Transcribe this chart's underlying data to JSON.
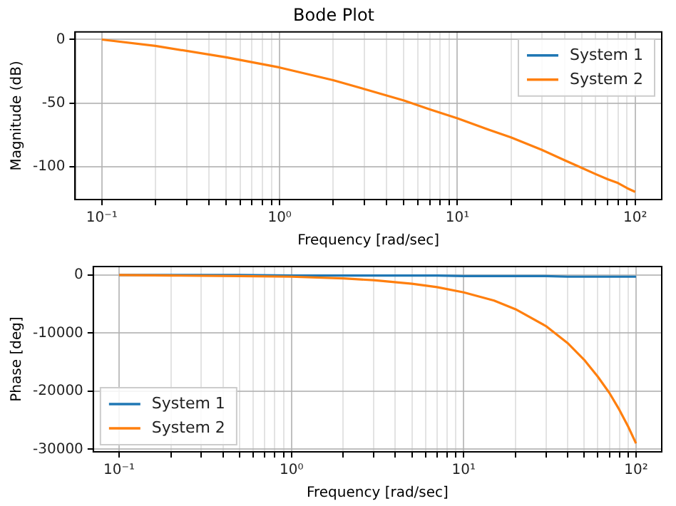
{
  "chart_data": [
    {
      "type": "line",
      "title": "Bode Plot",
      "xlabel": "Frequency [rad/sec]",
      "ylabel": "Magnitude (dB)",
      "x": [
        0.1,
        0.2,
        0.5,
        1,
        2,
        3,
        5,
        7,
        10,
        15,
        20,
        30,
        40,
        50,
        60,
        70,
        80,
        90,
        100
      ],
      "series": [
        {
          "name": "System 1",
          "color": "#1f77b4",
          "values": [
            null,
            null,
            null,
            null,
            null,
            null,
            null,
            null,
            null,
            null,
            null,
            null,
            null,
            null,
            null,
            null,
            null,
            null,
            null
          ]
        },
        {
          "name": "System 2",
          "color": "#ff7f0e",
          "values": [
            0,
            -5,
            -14,
            -22,
            -32,
            -39,
            -48,
            -55,
            -62,
            -71,
            -77,
            -87,
            -95,
            -101,
            -106,
            -110,
            -113,
            -117,
            -120
          ]
        }
      ],
      "log": "x",
      "xlim": [
        0.0708,
        141
      ],
      "ylim": [
        -126,
        6
      ],
      "xticks": [
        {
          "value": 0.1,
          "label": "10⁻¹"
        },
        {
          "value": 0.2,
          "label": null
        },
        {
          "value": 0.3,
          "label": null
        },
        {
          "value": 0.4,
          "label": null
        },
        {
          "value": 0.5,
          "label": null
        },
        {
          "value": 0.6,
          "label": null
        },
        {
          "value": 0.7,
          "label": null
        },
        {
          "value": 0.8,
          "label": null
        },
        {
          "value": 0.9,
          "label": null
        },
        {
          "value": 1,
          "label": "10⁰"
        },
        {
          "value": 2,
          "label": null
        },
        {
          "value": 3,
          "label": null
        },
        {
          "value": 4,
          "label": null
        },
        {
          "value": 5,
          "label": null
        },
        {
          "value": 6,
          "label": null
        },
        {
          "value": 7,
          "label": null
        },
        {
          "value": 8,
          "label": null
        },
        {
          "value": 9,
          "label": null
        },
        {
          "value": 10,
          "label": "10¹"
        },
        {
          "value": 20,
          "label": null
        },
        {
          "value": 30,
          "label": null
        },
        {
          "value": 40,
          "label": null
        },
        {
          "value": 50,
          "label": null
        },
        {
          "value": 60,
          "label": null
        },
        {
          "value": 70,
          "label": null
        },
        {
          "value": 80,
          "label": null
        },
        {
          "value": 90,
          "label": null
        },
        {
          "value": 100,
          "label": "10²"
        }
      ],
      "yticks": [
        0,
        -50,
        -100
      ],
      "grid": true,
      "legend": "top right",
      "marker": "none",
      "line_style": "solid"
    },
    {
      "type": "line",
      "xlabel": "Frequency [rad/sec]",
      "ylabel": "Phase [deg]",
      "x": [
        0.1,
        0.2,
        0.5,
        1,
        2,
        3,
        5,
        7,
        10,
        15,
        20,
        30,
        40,
        50,
        60,
        70,
        80,
        90,
        100
      ],
      "series": [
        {
          "name": "System 1",
          "color": "#1f77b4",
          "values": [
            0,
            0,
            0,
            -100,
            -100,
            -100,
            -100,
            -100,
            -200,
            -200,
            -200,
            -200,
            -300,
            -300,
            -300,
            -300,
            -300,
            -300,
            -300
          ]
        },
        {
          "name": "System 2",
          "color": "#ff7f0e",
          "values": [
            0,
            -100,
            -200,
            -300,
            -600,
            -900,
            -1500,
            -2100,
            -3000,
            -4400,
            -5900,
            -8800,
            -11700,
            -14600,
            -17500,
            -20300,
            -23200,
            -26100,
            -29000
          ]
        }
      ],
      "log": "x",
      "xlim": [
        0.0708,
        141
      ],
      "ylim": [
        -30450,
        1450
      ],
      "xticks": [
        {
          "value": 0.1,
          "label": "10⁻¹"
        },
        {
          "value": 0.2,
          "label": null
        },
        {
          "value": 0.3,
          "label": null
        },
        {
          "value": 0.4,
          "label": null
        },
        {
          "value": 0.5,
          "label": null
        },
        {
          "value": 0.6,
          "label": null
        },
        {
          "value": 0.7,
          "label": null
        },
        {
          "value": 0.8,
          "label": null
        },
        {
          "value": 0.9,
          "label": null
        },
        {
          "value": 1,
          "label": "10⁰"
        },
        {
          "value": 2,
          "label": null
        },
        {
          "value": 3,
          "label": null
        },
        {
          "value": 4,
          "label": null
        },
        {
          "value": 5,
          "label": null
        },
        {
          "value": 6,
          "label": null
        },
        {
          "value": 7,
          "label": null
        },
        {
          "value": 8,
          "label": null
        },
        {
          "value": 9,
          "label": null
        },
        {
          "value": 10,
          "label": "10¹"
        },
        {
          "value": 20,
          "label": null
        },
        {
          "value": 30,
          "label": null
        },
        {
          "value": 40,
          "label": null
        },
        {
          "value": 50,
          "label": null
        },
        {
          "value": 60,
          "label": null
        },
        {
          "value": 70,
          "label": null
        },
        {
          "value": 80,
          "label": null
        },
        {
          "value": 90,
          "label": null
        },
        {
          "value": 100,
          "label": "10²"
        }
      ],
      "yticks": [
        0,
        -10000,
        -20000,
        -30000
      ],
      "grid": true,
      "legend": "bottom left",
      "marker": "none",
      "line_style": "solid"
    }
  ]
}
